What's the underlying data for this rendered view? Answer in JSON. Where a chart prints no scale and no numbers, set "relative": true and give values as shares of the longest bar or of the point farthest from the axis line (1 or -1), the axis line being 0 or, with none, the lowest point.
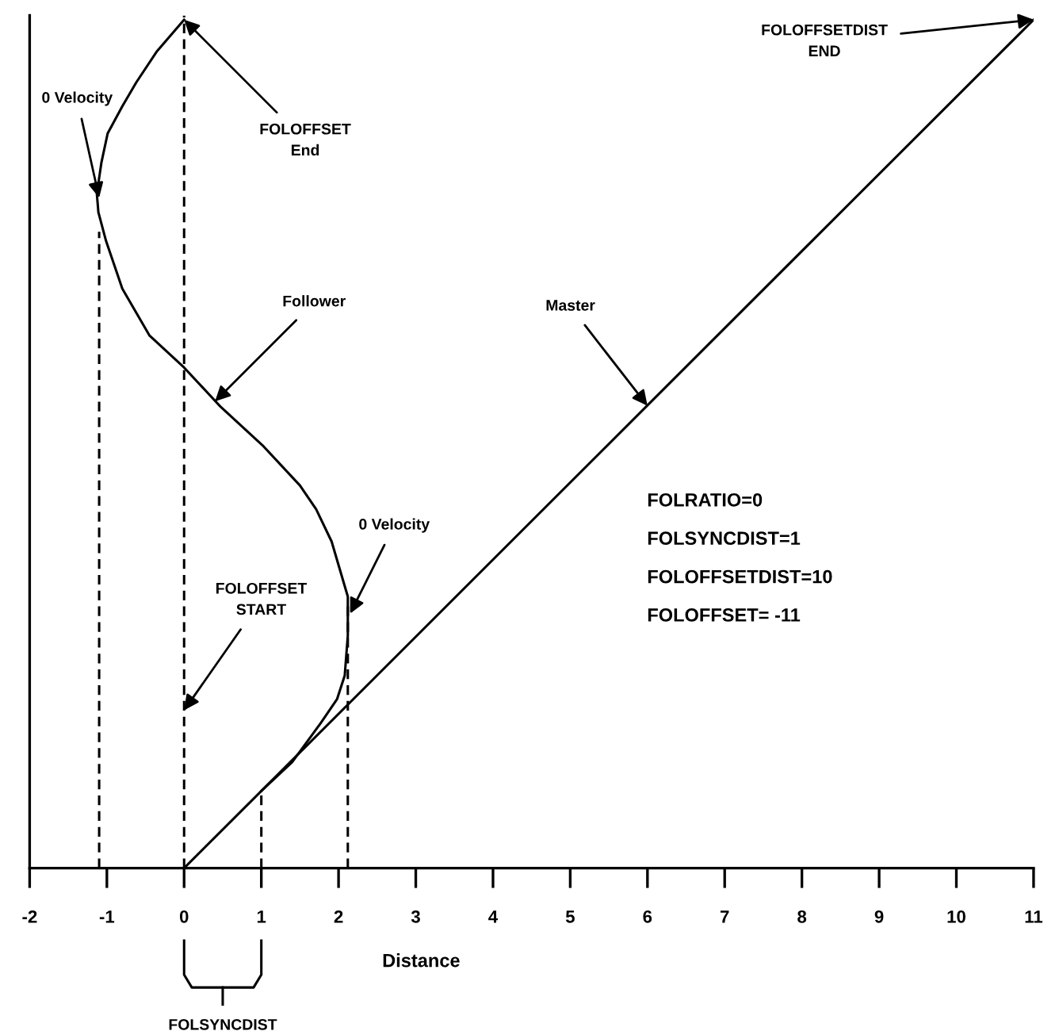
{
  "chart_data": {
    "type": "line",
    "relative": true,
    "xlabel": "Distance",
    "xlim": [
      -2,
      11
    ],
    "xticks": [
      -2,
      -1,
      0,
      1,
      2,
      3,
      4,
      5,
      6,
      7,
      8,
      9,
      10,
      11
    ],
    "tick_labels": "x",
    "marker": "none",
    "series": [
      {
        "color": "#000000",
        "line_style": "solid",
        "x": [
          0,
          11
        ],
        "values": [
          0,
          1
        ]
      },
      {
        "color": "#000000",
        "line_style": "solid",
        "x": [
          1,
          1.4,
          1.77,
          1.98,
          2.08,
          2.12,
          2.12,
          1.91,
          1.71,
          1.5,
          1.03,
          0.47,
          0,
          -0.45,
          -0.8,
          -1.01,
          -1.11,
          -1.13,
          -1.07,
          -0.99,
          -0.8,
          -0.62,
          -0.35,
          0
        ],
        "values": [
          0.091,
          0.125,
          0.171,
          0.199,
          0.227,
          0.274,
          0.32,
          0.385,
          0.423,
          0.451,
          0.497,
          0.544,
          0.59,
          0.628,
          0.683,
          0.739,
          0.773,
          0.795,
          0.832,
          0.866,
          0.898,
          0.926,
          0.963,
          1
        ]
      },
      {
        "color": "#000000",
        "line_style": "dashed",
        "x": [
          -1.1,
          -1.1,
          0.5,
          1,
          1,
          1.5,
          2.12,
          2.12
        ],
        "values": [
          0,
          0.75,
          null,
          0,
          0.091,
          null,
          0,
          0.31
        ]
      }
    ],
    "ref_lines": [
      {
        "axis": "x",
        "value": 0,
        "color": "#000000",
        "line_style": "dashed"
      }
    ],
    "annotations": [
      {
        "text": "0 Velocity",
        "x": -1.1,
        "y": 0.79
      },
      {
        "text": "FOLOFFSET\nEnd",
        "x": 0,
        "y": 1
      },
      {
        "text": "Follower",
        "x": 0.4,
        "y": 0.55
      },
      {
        "text": "Master",
        "x": 6,
        "y": 0.545
      },
      {
        "text": "0 Velocity",
        "x": 2.15,
        "y": 0.3
      },
      {
        "text": "FOLOFFSET\nSTART",
        "x": 0,
        "y": 0.186
      },
      {
        "text": "FOLOFFSETDIST\nEND",
        "x": 11,
        "y": 1
      },
      "FOLRATIO=0",
      "FOLSYNCDIST=1",
      "FOLOFFSETDIST=10",
      "FOLOFFSET= -11",
      "FOLSYNCDIST"
    ]
  }
}
